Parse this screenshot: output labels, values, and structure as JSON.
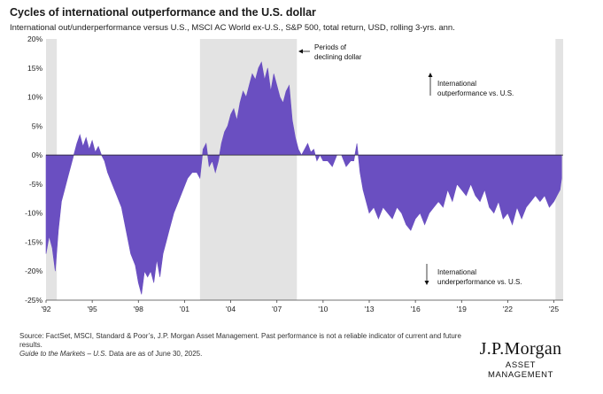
{
  "chart_data": {
    "type": "area",
    "title": "Cycles of international outperformance and the U.S. dollar",
    "subtitle": "International out/underperformance versus U.S., MSCI AC World ex-U.S., S&P 500, total return, USD, rolling 3-yrs. ann.",
    "xlim": [
      1992.0,
      2025.6
    ],
    "ylim": [
      -25,
      20
    ],
    "y_ticks": [
      20,
      15,
      10,
      5,
      0,
      -5,
      -10,
      -15,
      -20,
      -25
    ],
    "y_tick_labels": [
      "20%",
      "15%",
      "10%",
      "5%",
      "0%",
      "-5%",
      "-10%",
      "-15%",
      "-20%",
      "-25%"
    ],
    "x_ticks": [
      1992,
      1995,
      1998,
      2001,
      2004,
      2007,
      2010,
      2013,
      2016,
      2019,
      2022,
      2025
    ],
    "x_tick_labels": [
      "'92",
      "'95",
      "'98",
      "'01",
      "'04",
      "'07",
      "'10",
      "'13",
      "'16",
      "'19",
      "'22",
      "'25"
    ],
    "shaded_periods": [
      [
        1992.0,
        1992.7
      ],
      [
        2002.0,
        2008.3
      ],
      [
        2025.1,
        2025.6
      ]
    ],
    "grid": false,
    "series": [
      {
        "color": "#6a4fc1",
        "x": [
          1992.0,
          1992.2,
          1992.4,
          1992.6,
          1992.8,
          1993.0,
          1993.2,
          1993.4,
          1993.6,
          1993.8,
          1994.0,
          1994.2,
          1994.4,
          1994.6,
          1994.8,
          1995.0,
          1995.2,
          1995.4,
          1995.6,
          1995.8,
          1996.0,
          1996.3,
          1996.6,
          1996.9,
          1997.2,
          1997.5,
          1997.8,
          1998.0,
          1998.2,
          1998.4,
          1998.6,
          1998.8,
          1999.0,
          1999.2,
          1999.4,
          1999.6,
          1999.8,
          2000.0,
          2000.3,
          2000.6,
          2000.9,
          2001.2,
          2001.5,
          2001.8,
          2002.0,
          2002.2,
          2002.4,
          2002.6,
          2002.8,
          2003.0,
          2003.2,
          2003.4,
          2003.6,
          2003.8,
          2004.0,
          2004.2,
          2004.4,
          2004.6,
          2004.8,
          2005.0,
          2005.2,
          2005.4,
          2005.6,
          2005.8,
          2006.0,
          2006.2,
          2006.4,
          2006.6,
          2006.8,
          2007.0,
          2007.2,
          2007.4,
          2007.6,
          2007.8,
          2008.0,
          2008.2,
          2008.4,
          2008.6,
          2008.8,
          2009.0,
          2009.2,
          2009.4,
          2009.6,
          2009.8,
          2010.0,
          2010.3,
          2010.6,
          2010.9,
          2011.2,
          2011.5,
          2011.8,
          2012.0,
          2012.2,
          2012.4,
          2012.6,
          2012.8,
          2013.0,
          2013.3,
          2013.6,
          2013.9,
          2014.2,
          2014.5,
          2014.8,
          2015.1,
          2015.4,
          2015.7,
          2016.0,
          2016.3,
          2016.6,
          2016.9,
          2017.2,
          2017.5,
          2017.8,
          2018.1,
          2018.4,
          2018.7,
          2019.0,
          2019.3,
          2019.6,
          2019.9,
          2020.2,
          2020.5,
          2020.8,
          2021.1,
          2021.4,
          2021.7,
          2022.0,
          2022.3,
          2022.6,
          2022.9,
          2023.2,
          2023.5,
          2023.8,
          2024.1,
          2024.4,
          2024.7,
          2025.0,
          2025.2,
          2025.4,
          2025.5
        ],
        "y": [
          -17,
          -14,
          -16,
          -20,
          -13,
          -8,
          -6,
          -4,
          -2,
          0,
          2,
          3.5,
          1.5,
          3,
          1,
          2.5,
          0.5,
          1.5,
          0,
          -1,
          -3,
          -5,
          -7,
          -9,
          -13,
          -17,
          -19,
          -22,
          -24,
          -20,
          -21,
          -20,
          -22,
          -18,
          -21,
          -17,
          -15,
          -13,
          -10,
          -8,
          -6,
          -4,
          -3,
          -3,
          -4,
          1,
          2,
          -2,
          -1,
          -3,
          -1,
          2,
          4,
          5,
          7,
          8,
          6,
          9,
          11,
          10,
          12,
          14,
          13,
          15,
          16,
          13,
          15,
          11,
          14,
          12,
          10,
          9,
          11,
          12,
          6,
          3,
          1,
          0,
          1,
          2,
          0.5,
          1,
          -1,
          0,
          -1,
          -1,
          -2,
          0,
          0,
          -2,
          -1,
          -1,
          2,
          -3,
          -6,
          -8,
          -10,
          -9,
          -11,
          -9,
          -10,
          -11,
          -9,
          -10,
          -12,
          -13,
          -11,
          -10,
          -12,
          -10,
          -9,
          -8,
          -9,
          -6,
          -8,
          -5,
          -6,
          -7,
          -5,
          -7,
          -8,
          -6,
          -9,
          -10,
          -8,
          -11,
          -10,
          -12,
          -9,
          -11,
          -9,
          -8,
          -7,
          -8,
          -7,
          -9,
          -8,
          -7,
          -6,
          -4
        ]
      }
    ],
    "annotations": {
      "declining_dollar": [
        "Periods of",
        "declining dollar"
      ],
      "outperformance": [
        "International",
        "outperformance vs. U.S."
      ],
      "underperformance": [
        "International",
        "underperformance vs. U.S."
      ]
    }
  },
  "footer": {
    "source_line1": "Source: FactSet, MSCI, Standard & Poor’s, J.P. Morgan Asset Management. Past performance is not a reliable indicator of current and future",
    "source_line2": "results.",
    "guide_italic": "Guide to the Markets – U.S.",
    "guide_rest": " Data are as of June 30, 2025."
  },
  "brand": {
    "name": "J.P.Morgan",
    "sub": "ASSET MANAGEMENT"
  }
}
